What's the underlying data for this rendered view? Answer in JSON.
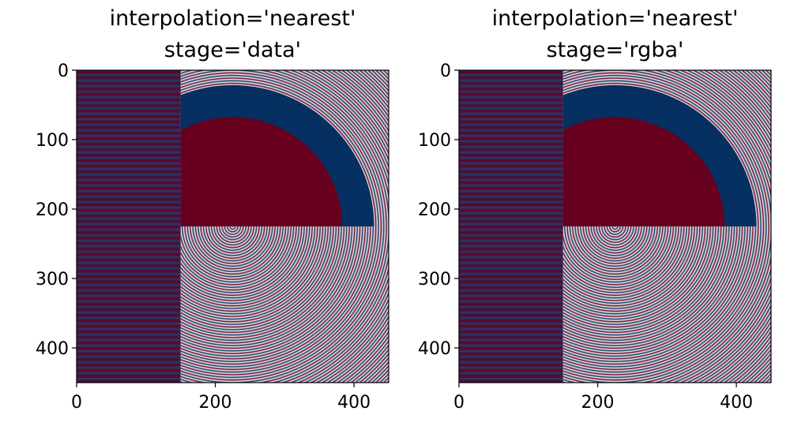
{
  "chart_data": [
    {
      "type": "heatmap",
      "title": "interpolation='nearest'\nstage='data'",
      "title_lines": [
        "interpolation='nearest'",
        "stage='data'"
      ],
      "image_size": [
        450,
        450
      ],
      "x_ticks": [
        0,
        200,
        400
      ],
      "y_ticks": [
        0,
        100,
        200,
        300,
        400
      ],
      "x_tick_labels": [
        "0",
        "200",
        "400"
      ],
      "y_tick_labels": [
        "0",
        "100",
        "200",
        "300",
        "400"
      ],
      "xlim": [
        0,
        450
      ],
      "ylim": [
        450,
        0
      ],
      "colormap": "RdBu",
      "regions": [
        "x 0–150: horizontal striped band",
        "x 150–450, y 0–225: concentric rings with solid half-disk at (225,225) r≈158 and blue ring up to r≈204",
        "x 150–450, y 225–450: concentric rings centered at (225,225)"
      ]
    },
    {
      "type": "heatmap",
      "title": "interpolation='nearest'\nstage='rgba'",
      "title_lines": [
        "interpolation='nearest'",
        "stage='rgba'"
      ],
      "image_size": [
        450,
        450
      ],
      "x_ticks": [
        0,
        200,
        400
      ],
      "y_ticks": [
        0,
        100,
        200,
        300,
        400
      ],
      "x_tick_labels": [
        "0",
        "200",
        "400"
      ],
      "y_tick_labels": [
        "0",
        "100",
        "200",
        "300",
        "400"
      ],
      "xlim": [
        0,
        450
      ],
      "ylim": [
        450,
        0
      ],
      "colormap": "RdBu",
      "regions": [
        "x 0–150: horizontal striped band",
        "x 150–450, y 0–225: concentric rings with solid half-disk at (225,225) r≈158 and blue ring up to r≈204",
        "x 150–450, y 225–450: concentric rings centered at (225,225)"
      ]
    }
  ],
  "colors": {
    "dark_red": "#67001f",
    "dark_blue": "#053061",
    "white": "#f7f7f7"
  }
}
